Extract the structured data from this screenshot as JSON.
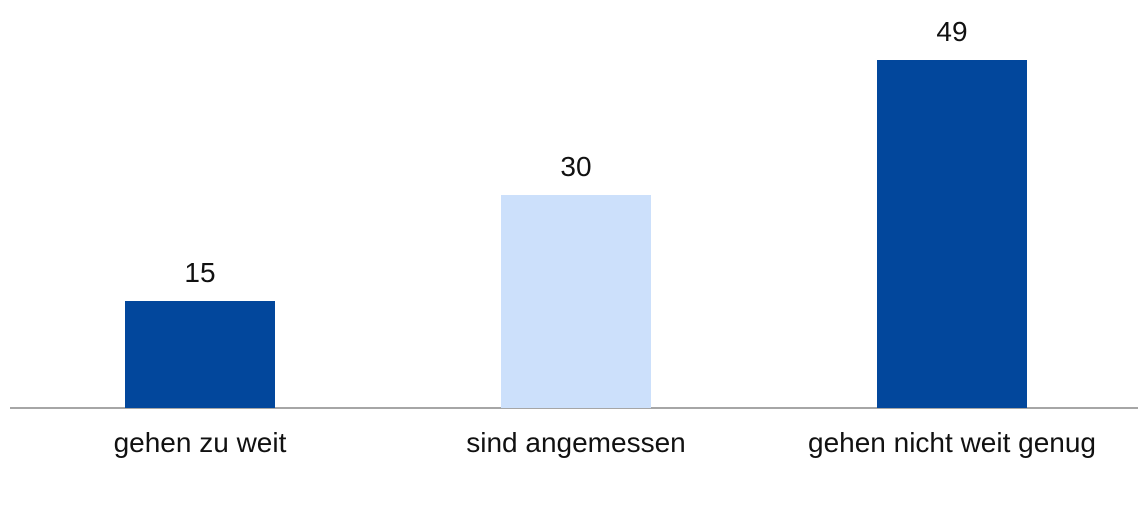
{
  "chart_data": {
    "type": "bar",
    "categories": [
      "gehen zu weit",
      "sind angemessen",
      "gehen nicht weit genug"
    ],
    "values": [
      15,
      30,
      49
    ],
    "colors": [
      "#02479c",
      "#cce0fb",
      "#02479c"
    ]
  }
}
